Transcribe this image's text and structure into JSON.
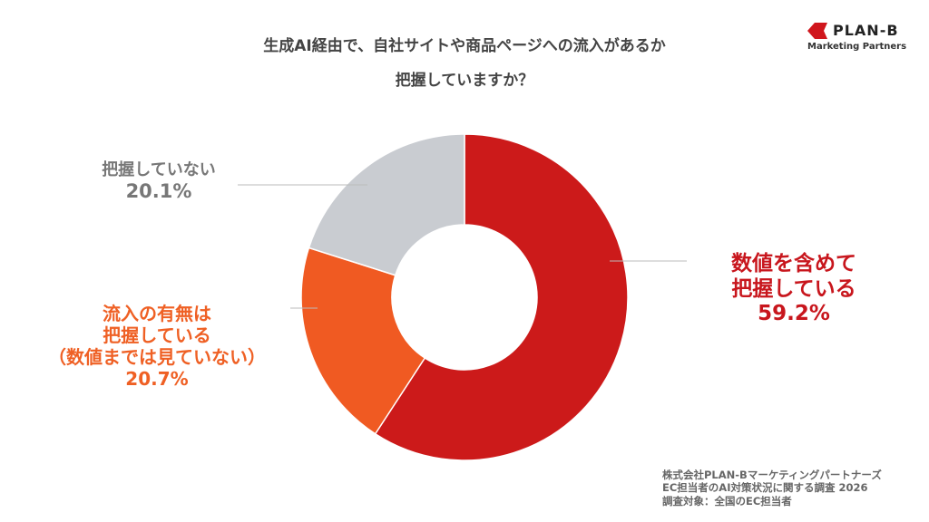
{
  "chart_data": {
    "type": "pie",
    "donut": true,
    "title_lines": [
      "生成AI経由で、自社サイトや商品ページへの流入があるか",
      "把握していますか？"
    ],
    "slices": [
      {
        "label_lines": [
          "数値を含めて",
          "把握している"
        ],
        "value": 59.2,
        "value_label": "59.2%",
        "color": "#cc1a1a",
        "text_color": "#c8161d"
      },
      {
        "label_lines": [
          "流入の有無は",
          "把握している",
          "（数値までは見ていない）"
        ],
        "value": 20.7,
        "value_label": "20.7%",
        "color": "#f05a22",
        "text_color": "#ef6024"
      },
      {
        "label_lines": [
          "把握していない"
        ],
        "value": 20.1,
        "value_label": "20.1%",
        "color": "#c9ccd1",
        "text_color": "#777777"
      }
    ],
    "start": "top",
    "direction": "clockwise"
  },
  "logo": {
    "name": "PLAN-B",
    "sub": "Marketing Partners",
    "color": "#d0161d"
  },
  "footer": [
    "株式会社PLAN-Bマーケティングパートナーズ",
    "EC担当者のAI対策状況に関する調査 2026",
    "調査対象：全国のEC担当者"
  ]
}
